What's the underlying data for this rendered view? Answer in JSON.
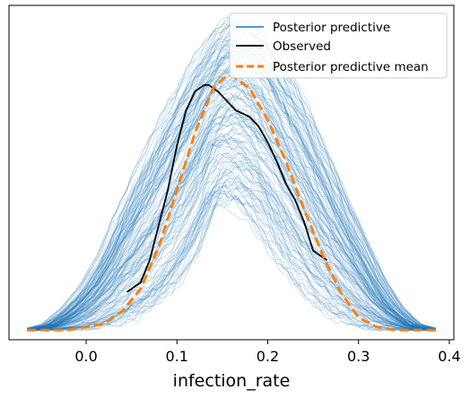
{
  "chart_data": {
    "type": "line",
    "xlabel": "infection_rate",
    "ylabel": "",
    "title": "",
    "xlim": [
      -0.085,
      0.405
    ],
    "ylim": [
      -0.03,
      1.02
    ],
    "xticks": [
      0.0,
      0.1,
      0.2,
      0.3,
      0.4
    ],
    "xtick_labels": [
      "0.0",
      "0.1",
      "0.2",
      "0.3",
      "0.4"
    ],
    "grid": false,
    "legend_placement": "top-right",
    "series": [
      {
        "name": "Posterior predictive",
        "style": "many-thin-translucent-curves",
        "color": "#1f77b4",
        "envelope": {
          "x": [
            -0.065,
            -0.04,
            -0.02,
            0.0,
            0.02,
            0.04,
            0.06,
            0.08,
            0.1,
            0.12,
            0.14,
            0.16,
            0.18,
            0.2,
            0.22,
            0.24,
            0.26,
            0.28,
            0.3,
            0.32,
            0.34,
            0.36,
            0.385
          ],
          "upper": [
            0.0,
            0.02,
            0.07,
            0.14,
            0.24,
            0.38,
            0.51,
            0.62,
            0.74,
            0.84,
            0.93,
            0.99,
            0.97,
            0.91,
            0.81,
            0.7,
            0.57,
            0.44,
            0.31,
            0.18,
            0.08,
            0.02,
            0.0
          ],
          "lower": [
            0.0,
            0.0,
            0.0,
            0.0,
            0.01,
            0.02,
            0.04,
            0.08,
            0.14,
            0.24,
            0.38,
            0.4,
            0.36,
            0.28,
            0.19,
            0.12,
            0.07,
            0.03,
            0.01,
            0.0,
            0.0,
            0.0,
            0.0
          ]
        }
      },
      {
        "name": "Observed",
        "color": "#000000",
        "x": [
          0.045,
          0.06,
          0.07,
          0.08,
          0.09,
          0.1,
          0.11,
          0.12,
          0.13,
          0.135,
          0.145,
          0.155,
          0.165,
          0.18,
          0.19,
          0.2,
          0.21,
          0.22,
          0.23,
          0.24,
          0.25,
          0.265
        ],
        "y": [
          0.12,
          0.15,
          0.22,
          0.33,
          0.44,
          0.58,
          0.69,
          0.75,
          0.77,
          0.77,
          0.75,
          0.72,
          0.69,
          0.67,
          0.64,
          0.59,
          0.53,
          0.46,
          0.41,
          0.34,
          0.25,
          0.22
        ]
      },
      {
        "name": "Posterior predictive mean",
        "color": "#ff7f0e",
        "dashed": true,
        "x": [
          -0.065,
          -0.04,
          -0.02,
          0.0,
          0.02,
          0.04,
          0.06,
          0.08,
          0.1,
          0.12,
          0.14,
          0.155,
          0.16,
          0.18,
          0.2,
          0.22,
          0.24,
          0.26,
          0.28,
          0.3,
          0.32,
          0.34,
          0.36,
          0.385
        ],
        "y": [
          0.0,
          0.0,
          0.0,
          0.01,
          0.02,
          0.06,
          0.13,
          0.26,
          0.44,
          0.62,
          0.76,
          0.8,
          0.8,
          0.76,
          0.66,
          0.53,
          0.38,
          0.24,
          0.12,
          0.04,
          0.01,
          0.0,
          0.0,
          0.0
        ]
      }
    ]
  }
}
